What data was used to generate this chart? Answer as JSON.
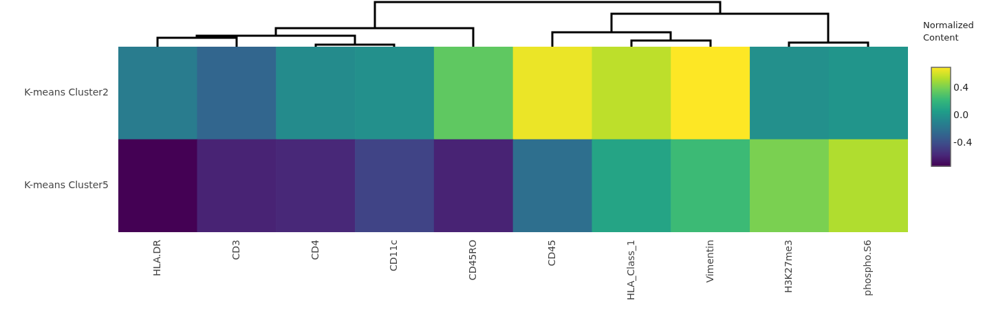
{
  "chart_data": {
    "type": "heatmap",
    "clabel": "Normalized Content",
    "categories": [
      "HLA.DR",
      "CD3",
      "CD4",
      "CD11c",
      "CD45RO",
      "CD45",
      "HLA_Class_1",
      "Vimentin",
      "H3K27me3",
      "phospho.S6"
    ],
    "y_categories": [
      "K-means Cluster2",
      "K-means Cluster5"
    ],
    "cells": [
      [
        -0.14,
        -0.27,
        -0.05,
        -0.02,
        0.34,
        0.66,
        0.56,
        0.7,
        -0.02,
        0.01
      ],
      [
        -0.74,
        -0.6,
        -0.58,
        -0.45,
        -0.6,
        -0.22,
        0.1,
        0.24,
        0.41,
        0.53
      ]
    ],
    "clim": [
      -0.74,
      0.7
    ],
    "cticks": [
      -0.4,
      {
        "value": 0,
        "label": "0.0"
      },
      0.4
    ]
  }
}
